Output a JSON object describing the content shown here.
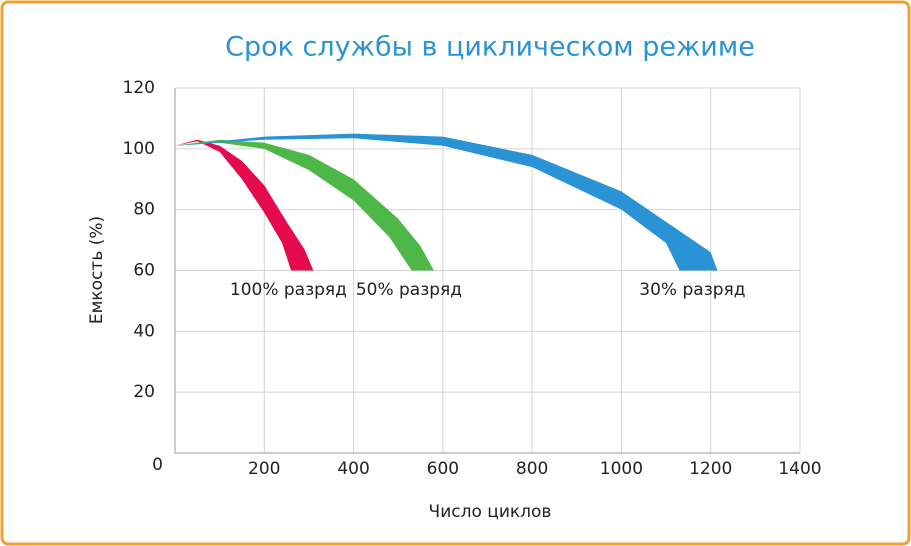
{
  "chart_data": {
    "type": "band",
    "title": "Срок службы в циклическом режиме",
    "x_label": "Число циклов",
    "y_label": "Емкость (%)",
    "xlim": [
      0,
      1400
    ],
    "xticks": [
      200,
      400,
      600,
      800,
      1000,
      1200,
      1400
    ],
    "ylim": [
      0,
      120
    ],
    "yticks": [
      0,
      20,
      40,
      60,
      80,
      100,
      120
    ],
    "grid": true,
    "series": [
      {
        "name": "100% разряд",
        "color": "#e5094e",
        "outer": {
          "x": [
            0,
            50,
            100,
            150,
            200,
            250,
            290,
            310
          ],
          "values": [
            101,
            103,
            101,
            96,
            88,
            76,
            67,
            60
          ]
        },
        "inner": {
          "x": [
            0,
            50,
            100,
            150,
            200,
            240,
            260
          ],
          "values": [
            101,
            102.5,
            99,
            90,
            79,
            69,
            60
          ]
        }
      },
      {
        "name": "50% разряд",
        "color": "#4db848",
        "outer": {
          "x": [
            0,
            100,
            200,
            300,
            400,
            500,
            550,
            580
          ],
          "values": [
            101,
            103,
            102,
            98,
            90,
            77,
            68,
            60
          ]
        },
        "inner": {
          "x": [
            0,
            100,
            200,
            300,
            400,
            480,
            530
          ],
          "values": [
            101,
            102,
            100,
            93,
            83,
            71,
            60
          ]
        }
      },
      {
        "name": "30% разряд",
        "color": "#2a93d5",
        "outer": {
          "x": [
            0,
            200,
            400,
            600,
            800,
            1000,
            1100,
            1200,
            1215
          ],
          "values": [
            101,
            104,
            105,
            104,
            98,
            86,
            76,
            66,
            60
          ]
        },
        "inner": {
          "x": [
            0,
            200,
            400,
            600,
            800,
            1000,
            1100,
            1130
          ],
          "values": [
            101,
            103,
            103.5,
            101,
            94,
            80,
            69,
            60
          ]
        }
      }
    ]
  }
}
